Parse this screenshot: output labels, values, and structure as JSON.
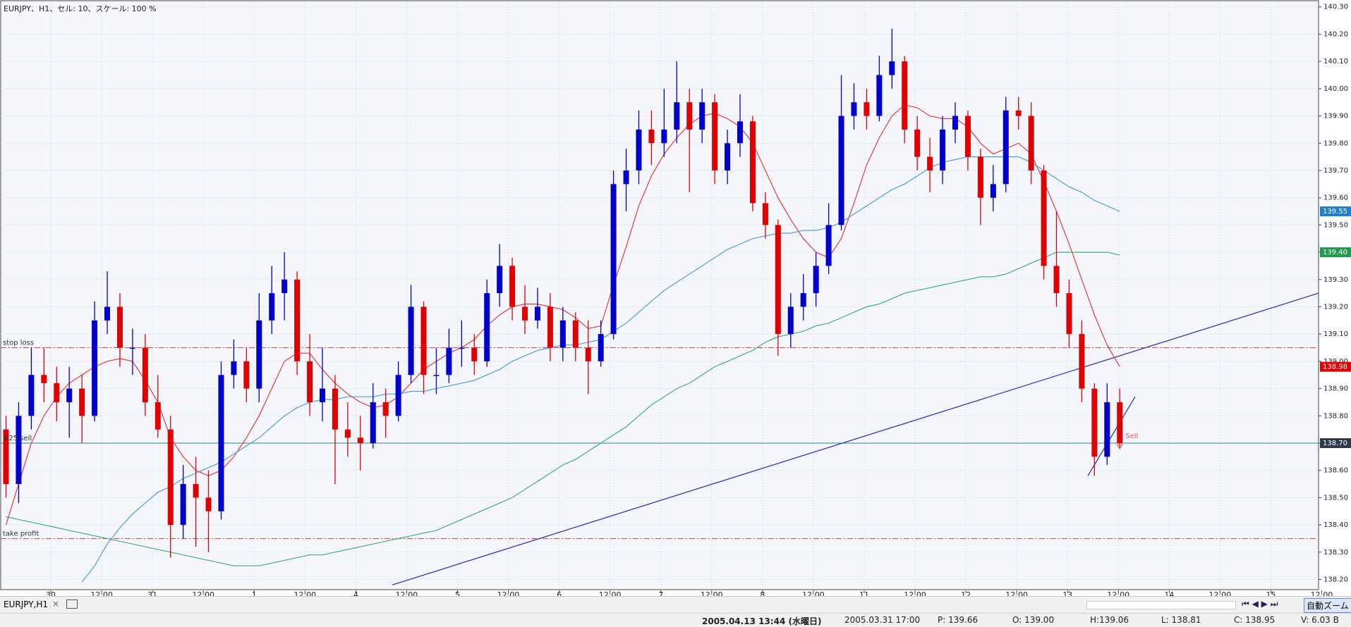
{
  "header": {
    "title": "EURJPY、H1、セル: 10、スケール: 100 %"
  },
  "chart_data": {
    "type": "candlestick",
    "up_color": "#0000cd",
    "down_color": "#e00000",
    "grid": true,
    "ylim": [
      138.16,
      140.32
    ],
    "yticks": [
      {
        "value": 140.3,
        "label": "140.30"
      },
      {
        "value": 140.2,
        "label": "140.20"
      },
      {
        "value": 140.1,
        "label": "140.10"
      },
      {
        "value": 140.0,
        "label": "140.00"
      },
      {
        "value": 139.9,
        "label": "139.90"
      },
      {
        "value": 139.8,
        "label": "139.80"
      },
      {
        "value": 139.7,
        "label": "139.70"
      },
      {
        "value": 139.6,
        "label": "139.60"
      },
      {
        "value": 139.5,
        "label": "139.50"
      },
      {
        "value": 139.4,
        "label": "139.40"
      },
      {
        "value": 139.3,
        "label": "139.30"
      },
      {
        "value": 139.2,
        "label": "139.20"
      },
      {
        "value": 139.1,
        "label": "139.10"
      },
      {
        "value": 139.0,
        "label": "139.00"
      },
      {
        "value": 138.9,
        "label": "138.90"
      },
      {
        "value": 138.8,
        "label": "138.80"
      },
      {
        "value": 138.7,
        "label": "138.70"
      },
      {
        "value": 138.6,
        "label": "138.60"
      },
      {
        "value": 138.5,
        "label": "138.50"
      },
      {
        "value": 138.4,
        "label": "138.40"
      },
      {
        "value": 138.3,
        "label": "138.30"
      },
      {
        "value": 138.2,
        "label": "138.20"
      }
    ],
    "xlabels": [
      "30",
      "12:00",
      "31",
      "12:00",
      "1",
      "12:00",
      "4",
      "12:00",
      "5",
      "12:00",
      "6",
      "12:00",
      "7",
      "12:00",
      "8",
      "12:00",
      "11",
      "12:00",
      "12",
      "12:00",
      "13",
      "12:00",
      "14",
      "12:00",
      "15",
      "12:00"
    ],
    "ohlc": [
      [
        138.75,
        138.8,
        138.5,
        138.55
      ],
      [
        138.55,
        138.85,
        138.48,
        138.8
      ],
      [
        138.8,
        139.05,
        138.75,
        138.95
      ],
      [
        138.95,
        139.05,
        138.85,
        138.92
      ],
      [
        138.92,
        138.98,
        138.78,
        138.85
      ],
      [
        138.85,
        138.98,
        138.72,
        138.9
      ],
      [
        138.9,
        138.95,
        138.7,
        138.8
      ],
      [
        138.8,
        139.22,
        138.78,
        139.15
      ],
      [
        139.15,
        139.33,
        139.1,
        139.2
      ],
      [
        139.2,
        139.25,
        138.98,
        139.05
      ],
      [
        139.05,
        139.12,
        138.95,
        139.05
      ],
      [
        139.05,
        139.1,
        138.8,
        138.85
      ],
      [
        138.85,
        138.95,
        138.72,
        138.75
      ],
      [
        138.75,
        138.8,
        138.28,
        138.4
      ],
      [
        138.4,
        138.62,
        138.35,
        138.55
      ],
      [
        138.55,
        138.65,
        138.32,
        138.5
      ],
      [
        138.5,
        138.6,
        138.3,
        138.45
      ],
      [
        138.45,
        139.0,
        138.42,
        138.95
      ],
      [
        138.95,
        139.08,
        138.9,
        139.0
      ],
      [
        139.0,
        139.05,
        138.85,
        138.9
      ],
      [
        138.9,
        139.25,
        138.85,
        139.15
      ],
      [
        139.15,
        139.35,
        139.1,
        139.25
      ],
      [
        139.25,
        139.4,
        139.15,
        139.3
      ],
      [
        139.3,
        139.33,
        138.95,
        139.0
      ],
      [
        139.0,
        139.1,
        138.8,
        138.85
      ],
      [
        138.85,
        139.05,
        138.78,
        138.9
      ],
      [
        138.9,
        138.95,
        138.55,
        138.75
      ],
      [
        138.75,
        138.85,
        138.65,
        138.72
      ],
      [
        138.72,
        138.8,
        138.6,
        138.7
      ],
      [
        138.7,
        138.92,
        138.68,
        138.85
      ],
      [
        138.85,
        138.9,
        138.72,
        138.8
      ],
      [
        138.8,
        139.0,
        138.78,
        138.95
      ],
      [
        138.95,
        139.28,
        138.92,
        139.2
      ],
      [
        139.2,
        139.22,
        138.88,
        138.95
      ],
      [
        138.95,
        139.05,
        138.88,
        138.95
      ],
      [
        138.95,
        139.12,
        138.92,
        139.05
      ],
      [
        139.05,
        139.15,
        138.98,
        139.05
      ],
      [
        139.05,
        139.1,
        138.95,
        139.0
      ],
      [
        139.0,
        139.3,
        138.98,
        139.25
      ],
      [
        139.25,
        139.43,
        139.2,
        139.35
      ],
      [
        139.35,
        139.38,
        139.15,
        139.2
      ],
      [
        139.2,
        139.28,
        139.1,
        139.15
      ],
      [
        139.15,
        139.27,
        139.12,
        139.2
      ],
      [
        139.2,
        139.25,
        139.0,
        139.05
      ],
      [
        139.05,
        139.2,
        139.0,
        139.15
      ],
      [
        139.15,
        139.18,
        139.0,
        139.05
      ],
      [
        139.05,
        139.15,
        138.88,
        139.0
      ],
      [
        139.0,
        139.15,
        138.98,
        139.1
      ],
      [
        139.1,
        139.7,
        139.08,
        139.65
      ],
      [
        139.65,
        139.78,
        139.55,
        139.7
      ],
      [
        139.7,
        139.92,
        139.65,
        139.85
      ],
      [
        139.85,
        139.92,
        139.72,
        139.8
      ],
      [
        139.8,
        140.0,
        139.75,
        139.85
      ],
      [
        139.85,
        140.1,
        139.8,
        139.95
      ],
      [
        139.95,
        140.0,
        139.62,
        139.85
      ],
      [
        139.85,
        140.0,
        139.8,
        139.95
      ],
      [
        139.95,
        139.98,
        139.65,
        139.7
      ],
      [
        139.7,
        139.85,
        139.65,
        139.8
      ],
      [
        139.8,
        139.98,
        139.75,
        139.88
      ],
      [
        139.88,
        139.9,
        139.55,
        139.58
      ],
      [
        139.58,
        139.62,
        139.45,
        139.5
      ],
      [
        139.5,
        139.52,
        139.02,
        139.1
      ],
      [
        139.1,
        139.25,
        139.05,
        139.2
      ],
      [
        139.2,
        139.32,
        139.15,
        139.25
      ],
      [
        139.25,
        139.4,
        139.2,
        139.35
      ],
      [
        139.35,
        139.58,
        139.32,
        139.5
      ],
      [
        139.5,
        140.05,
        139.48,
        139.9
      ],
      [
        139.9,
        140.02,
        139.85,
        139.95
      ],
      [
        139.95,
        140.0,
        139.85,
        139.9
      ],
      [
        139.9,
        140.12,
        139.88,
        140.05
      ],
      [
        140.05,
        140.22,
        140.0,
        140.1
      ],
      [
        140.1,
        140.12,
        139.8,
        139.85
      ],
      [
        139.85,
        139.9,
        139.7,
        139.75
      ],
      [
        139.75,
        139.82,
        139.62,
        139.7
      ],
      [
        139.7,
        139.9,
        139.65,
        139.85
      ],
      [
        139.85,
        139.95,
        139.8,
        139.9
      ],
      [
        139.9,
        139.92,
        139.7,
        139.75
      ],
      [
        139.75,
        139.78,
        139.5,
        139.6
      ],
      [
        139.6,
        139.72,
        139.55,
        139.65
      ],
      [
        139.65,
        139.97,
        139.62,
        139.92
      ],
      [
        139.92,
        139.97,
        139.85,
        139.9
      ],
      [
        139.9,
        139.95,
        139.65,
        139.7
      ],
      [
        139.7,
        139.72,
        139.3,
        139.35
      ],
      [
        139.35,
        139.55,
        139.2,
        139.25
      ],
      [
        139.25,
        139.3,
        139.05,
        139.1
      ],
      [
        139.1,
        139.15,
        138.85,
        138.9
      ],
      [
        138.9,
        138.92,
        138.58,
        138.65
      ],
      [
        138.65,
        138.92,
        138.62,
        138.85
      ],
      [
        138.85,
        138.9,
        138.68,
        138.7
      ]
    ],
    "moving_averages": [
      {
        "color": "#e23b3b",
        "values": [
          138.4,
          138.55,
          138.7,
          138.8,
          138.87,
          138.92,
          138.95,
          138.98,
          139.0,
          139.01,
          139.0,
          138.93,
          138.85,
          138.72,
          138.65,
          138.6,
          138.58,
          138.6,
          138.65,
          138.72,
          138.8,
          138.9,
          139.0,
          139.03,
          139.03,
          138.97,
          138.92,
          138.88,
          138.85,
          138.83,
          138.84,
          138.87,
          138.92,
          138.97,
          139.0,
          139.03,
          139.05,
          139.08,
          139.13,
          139.17,
          139.2,
          139.21,
          139.21,
          139.2,
          139.19,
          139.16,
          139.12,
          139.13,
          139.28,
          139.42,
          139.57,
          139.68,
          139.76,
          139.82,
          139.87,
          139.9,
          139.91,
          139.89,
          139.86,
          139.8,
          139.7,
          139.6,
          139.52,
          139.45,
          139.4,
          139.38,
          139.45,
          139.58,
          139.72,
          139.82,
          139.9,
          139.94,
          139.93,
          139.9,
          139.89,
          139.89,
          139.86,
          139.8,
          139.76,
          139.78,
          139.8,
          139.76,
          139.66,
          139.55,
          139.43,
          139.3,
          139.17,
          139.06,
          138.98
        ]
      },
      {
        "color": "#4b9fd6",
        "values": [
          null,
          null,
          null,
          null,
          null,
          null,
          138.19,
          138.25,
          138.33,
          138.39,
          138.44,
          138.48,
          138.52,
          138.54,
          138.57,
          138.59,
          138.61,
          138.63,
          138.66,
          138.69,
          138.72,
          138.76,
          138.8,
          138.83,
          138.85,
          138.86,
          138.86,
          138.87,
          138.87,
          138.87,
          138.88,
          138.88,
          138.89,
          138.89,
          138.9,
          138.91,
          138.92,
          138.93,
          138.95,
          138.97,
          139.0,
          139.02,
          139.04,
          139.05,
          139.06,
          139.06,
          139.07,
          139.08,
          139.11,
          139.14,
          139.18,
          139.22,
          139.26,
          139.29,
          139.32,
          139.35,
          139.38,
          139.41,
          139.43,
          139.45,
          139.46,
          139.47,
          139.47,
          139.48,
          139.48,
          139.49,
          139.51,
          139.54,
          139.57,
          139.6,
          139.63,
          139.65,
          139.68,
          139.71,
          139.73,
          139.74,
          139.75,
          139.75,
          139.75,
          139.75,
          139.75,
          139.73,
          139.7,
          139.67,
          139.64,
          139.62,
          139.59,
          139.57,
          139.55
        ]
      },
      {
        "color": "#3fae7c",
        "values": [
          138.43,
          138.42,
          138.41,
          138.4,
          138.39,
          138.38,
          138.37,
          138.36,
          138.35,
          138.34,
          138.33,
          138.32,
          138.31,
          138.3,
          138.29,
          138.28,
          138.27,
          138.26,
          138.25,
          138.25,
          138.25,
          138.26,
          138.27,
          138.28,
          138.29,
          138.29,
          138.3,
          138.31,
          138.32,
          138.33,
          138.34,
          138.35,
          138.36,
          138.37,
          138.38,
          138.4,
          138.42,
          138.44,
          138.46,
          138.48,
          138.5,
          138.53,
          138.56,
          138.59,
          138.62,
          138.64,
          138.67,
          138.7,
          138.73,
          138.76,
          138.8,
          138.84,
          138.87,
          138.9,
          138.92,
          138.95,
          138.98,
          139.0,
          139.02,
          139.04,
          139.07,
          139.09,
          139.1,
          139.11,
          139.13,
          139.14,
          139.16,
          139.18,
          139.2,
          139.21,
          139.23,
          139.25,
          139.26,
          139.27,
          139.28,
          139.29,
          139.3,
          139.31,
          139.31,
          139.32,
          139.34,
          139.36,
          139.38,
          139.4,
          139.4,
          139.4,
          139.4,
          139.4,
          139.39
        ]
      }
    ],
    "levels": [
      {
        "name": "stop loss",
        "value": 139.05,
        "color": "#e23b3b",
        "style": "dashdot"
      },
      {
        "name": "take profit",
        "value": 138.35,
        "color": "#e23b3b",
        "style": "dashdot"
      },
      {
        "name": "#25 sell",
        "value": 138.7,
        "color": "#2b7d8c",
        "style": "solid"
      }
    ],
    "trendlines": [
      {
        "color": "#3434b4",
        "values": [
          138.18,
          139.25
        ]
      },
      {
        "color": "#3434b4",
        "values": [
          138.58,
          138.87
        ]
      }
    ],
    "price_tags": [
      {
        "value": 139.55,
        "label": "139.55",
        "color": "#1e7fd2"
      },
      {
        "value": 139.4,
        "label": "139.40",
        "color": "#1f9a4e"
      },
      {
        "value": 138.98,
        "label": "138.98",
        "color": "#e00000"
      },
      {
        "value": 138.7,
        "label": "138.70",
        "color": "#30394a"
      }
    ],
    "marker": {
      "label": "Sell",
      "value": 138.7,
      "color": "#e05a5a"
    }
  },
  "tab": {
    "label": "EURJPY,H1",
    "close": "×"
  },
  "status": {
    "datetime": "2005.04.13 13:44 (水曜日)",
    "cursor_time": "2005.03.31 17:00",
    "price": "P: 139.66",
    "open": "O: 139.00",
    "high": "H:139.06",
    "low": "L: 138.81",
    "close": "C: 138.95",
    "volume": "V: 6.03 B",
    "zoom": "自動ズーム"
  }
}
